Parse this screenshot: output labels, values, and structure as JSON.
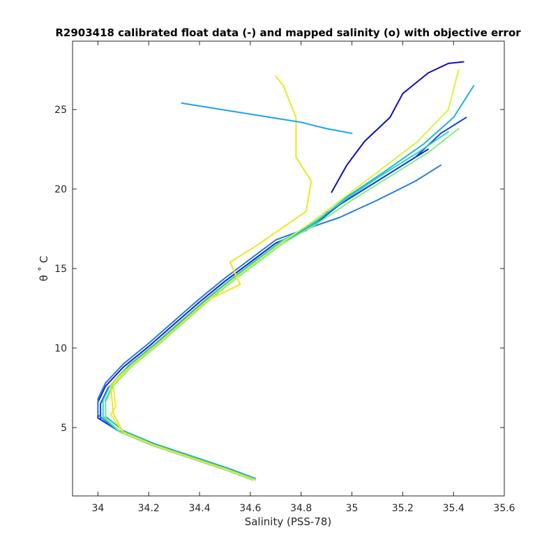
{
  "chart_data": {
    "type": "line",
    "title": "R2903418 calibrated float data (-) and mapped salinity (o) with objective error",
    "xlabel": "Salinity (PSS-78)",
    "ylabel": "θ ˚ C",
    "xlim": [
      33.9,
      35.6
    ],
    "ylim": [
      0.7,
      29.3
    ],
    "xticks": [
      "34",
      "34.2",
      "34.4",
      "34.6",
      "34.8",
      "35",
      "35.2",
      "35.4",
      "35.6"
    ],
    "yticks": [
      "5",
      "10",
      "15",
      "20",
      "25"
    ],
    "grid": false,
    "legend": "none",
    "series": [
      {
        "color": "#1a1fc9",
        "x": [
          34.6,
          34.5,
          34.35,
          34.2,
          34.08,
          34.0,
          34.0,
          34.03,
          34.1,
          34.2,
          34.3,
          34.4,
          34.5,
          34.6,
          34.7,
          34.82,
          34.9,
          35.0,
          35.1,
          35.2,
          35.3
        ],
        "y": [
          1.8,
          2.4,
          3.2,
          4.0,
          4.8,
          5.6,
          6.6,
          7.6,
          8.8,
          10.1,
          11.5,
          12.9,
          14.2,
          15.4,
          16.6,
          17.4,
          18.5,
          19.5,
          20.5,
          21.5,
          22.5
        ]
      },
      {
        "color": "#1640e0",
        "x": [
          34.61,
          34.51,
          34.36,
          34.21,
          34.09,
          34.01,
          34.01,
          34.04,
          34.11,
          34.21,
          34.31,
          34.41,
          34.51,
          34.61,
          34.71,
          34.84,
          34.95,
          35.1,
          35.25,
          35.35,
          35.45
        ],
        "y": [
          1.7,
          2.3,
          3.1,
          3.9,
          4.7,
          5.5,
          6.5,
          7.5,
          8.7,
          10.0,
          11.4,
          12.8,
          14.1,
          15.3,
          16.5,
          17.6,
          19.0,
          20.5,
          22.0,
          23.5,
          24.5
        ]
      },
      {
        "color": "#1f7fe8",
        "x": [
          34.59,
          34.49,
          34.34,
          34.19,
          34.07,
          34.0,
          34.0,
          34.03,
          34.1,
          34.2,
          34.3,
          34.4,
          34.5,
          34.6,
          34.7,
          34.82,
          34.95,
          35.1,
          35.25,
          35.35
        ],
        "y": [
          1.9,
          2.5,
          3.3,
          4.1,
          4.9,
          5.8,
          6.8,
          7.8,
          9.0,
          10.3,
          11.7,
          13.1,
          14.4,
          15.6,
          16.8,
          17.5,
          18.2,
          19.3,
          20.5,
          21.5
        ]
      },
      {
        "color": "#1fb4d6",
        "x": [
          34.62,
          34.52,
          34.37,
          34.22,
          34.1,
          34.03,
          34.03,
          34.06,
          34.13,
          34.23,
          34.33,
          34.43,
          34.53,
          34.63,
          34.73,
          34.85,
          34.98,
          35.12,
          35.28,
          35.4,
          35.48
        ],
        "y": [
          1.8,
          2.4,
          3.2,
          4.0,
          4.8,
          5.7,
          6.7,
          7.7,
          8.9,
          10.2,
          11.6,
          13.0,
          14.3,
          15.5,
          16.7,
          17.8,
          19.5,
          21.0,
          22.8,
          24.5,
          26.5
        ]
      },
      {
        "color": "#2ed3c2",
        "x": [
          34.6,
          34.5,
          34.35,
          34.2,
          34.08,
          34.02,
          34.02,
          34.05,
          34.12,
          34.22,
          34.32,
          34.42,
          34.52,
          34.62,
          34.72,
          34.85,
          34.98,
          35.12,
          35.26,
          35.38
        ],
        "y": [
          1.8,
          2.4,
          3.2,
          4.0,
          4.8,
          5.7,
          6.7,
          7.7,
          8.9,
          10.2,
          11.6,
          13.0,
          14.3,
          15.5,
          16.7,
          17.9,
          19.4,
          20.9,
          22.3,
          23.6
        ]
      },
      {
        "color": "#7ef07c",
        "x": [
          34.61,
          34.51,
          34.36,
          34.21,
          34.09,
          34.03,
          34.03,
          34.06,
          34.13,
          34.23,
          34.33,
          34.43,
          34.53,
          34.63,
          34.73,
          34.86,
          35.0,
          35.15,
          35.3,
          35.42
        ],
        "y": [
          1.7,
          2.3,
          3.1,
          3.9,
          4.7,
          5.6,
          6.6,
          7.6,
          8.8,
          10.1,
          11.5,
          12.9,
          14.2,
          15.4,
          16.6,
          17.8,
          19.3,
          20.8,
          22.3,
          23.8
        ]
      },
      {
        "color": "#d8f43c",
        "x": [
          34.62,
          34.52,
          34.37,
          34.22,
          34.1,
          34.05,
          34.07,
          34.06,
          34.13,
          34.23,
          34.33,
          34.43,
          34.53,
          34.63,
          34.73,
          34.84,
          34.98,
          35.12,
          35.26,
          35.38,
          35.42
        ],
        "y": [
          1.7,
          2.3,
          3.1,
          3.9,
          4.7,
          5.8,
          6.3,
          7.7,
          8.9,
          10.2,
          11.6,
          13.0,
          14.3,
          15.5,
          16.7,
          17.9,
          19.6,
          21.3,
          23.0,
          25.0,
          27.5
        ]
      },
      {
        "color": "#f2e51a",
        "x": [
          34.62,
          34.52,
          34.37,
          34.22,
          34.1,
          34.06,
          34.05,
          34.13,
          34.23,
          34.33,
          34.43,
          34.56,
          34.52,
          34.63,
          34.73,
          34.82,
          34.84,
          34.78,
          34.78,
          34.73,
          34.7
        ],
        "y": [
          1.7,
          2.3,
          3.1,
          3.9,
          4.7,
          5.9,
          7.7,
          8.9,
          10.2,
          11.6,
          13.0,
          14.0,
          15.4,
          16.5,
          17.6,
          18.6,
          20.5,
          22.0,
          24.5,
          26.5,
          27.1
        ]
      },
      {
        "color": "#0d0dbe",
        "x": [
          34.92,
          34.98,
          35.05,
          35.15,
          35.2,
          35.3,
          35.38,
          35.44
        ],
        "y": [
          19.8,
          21.5,
          23.0,
          24.5,
          26.0,
          27.3,
          27.9,
          28.0
        ]
      },
      {
        "color": "#1ba0ee",
        "x": [
          34.33,
          34.8,
          34.9,
          35.0
        ],
        "y": [
          25.4,
          24.2,
          23.8,
          23.5
        ]
      }
    ]
  }
}
